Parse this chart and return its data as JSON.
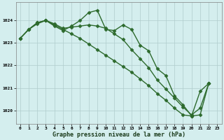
{
  "line_upper": {
    "x": [
      0,
      1,
      2,
      3,
      4,
      5,
      6,
      7,
      8,
      9,
      10,
      11,
      12,
      13,
      14,
      15,
      16,
      17,
      18,
      19,
      20,
      21,
      22
    ],
    "y": [
      1023.2,
      1023.6,
      1023.9,
      1024.0,
      1023.75,
      1023.55,
      1023.75,
      1024.0,
      1024.35,
      1024.45,
      1023.6,
      1023.55,
      1023.8,
      1023.6,
      1022.9,
      1022.65,
      1021.85,
      1021.55,
      1020.65,
      1020.25,
      1019.75,
      1020.85,
      1021.2
    ]
  },
  "line_flat": {
    "x": [
      0,
      1,
      2,
      3,
      4,
      5,
      6,
      7,
      8,
      9,
      10,
      11,
      12,
      13,
      14,
      15,
      16,
      17,
      18,
      19,
      20,
      21,
      22
    ],
    "y": [
      1023.2,
      1023.6,
      1023.85,
      1024.0,
      1023.85,
      1023.65,
      1023.7,
      1023.75,
      1023.8,
      1023.75,
      1023.65,
      1023.4,
      1023.15,
      1022.7,
      1022.3,
      1021.9,
      1021.35,
      1020.95,
      1020.55,
      1020.15,
      1019.8,
      1020.1,
      1021.2
    ]
  },
  "line_lower": {
    "x": [
      0,
      1,
      2,
      3,
      4,
      5,
      6,
      7,
      8,
      9,
      10,
      11,
      12,
      13,
      14,
      15,
      16,
      17,
      18,
      19,
      20,
      21,
      22
    ],
    "y": [
      1023.2,
      1023.6,
      1023.9,
      1024.0,
      1023.8,
      1023.6,
      1023.4,
      1023.2,
      1022.95,
      1022.7,
      1022.45,
      1022.2,
      1021.95,
      1021.7,
      1021.4,
      1021.1,
      1020.75,
      1020.45,
      1020.1,
      1019.8,
      1019.75,
      1019.8,
      1021.2
    ]
  },
  "color": "#2d6a2d",
  "bg_color": "#d4eeee",
  "grid_color": "#b0cccc",
  "xlabel": "Graphe pression niveau de la mer (hPa)",
  "ylim": [
    1019.4,
    1024.8
  ],
  "yticks": [
    1020,
    1021,
    1022,
    1023,
    1024
  ],
  "xticks": [
    0,
    1,
    2,
    3,
    4,
    5,
    6,
    7,
    8,
    9,
    10,
    11,
    12,
    13,
    14,
    15,
    16,
    17,
    18,
    19,
    20,
    21,
    22,
    23
  ],
  "marker": "D",
  "markersize": 2.5,
  "linewidth": 1.0
}
